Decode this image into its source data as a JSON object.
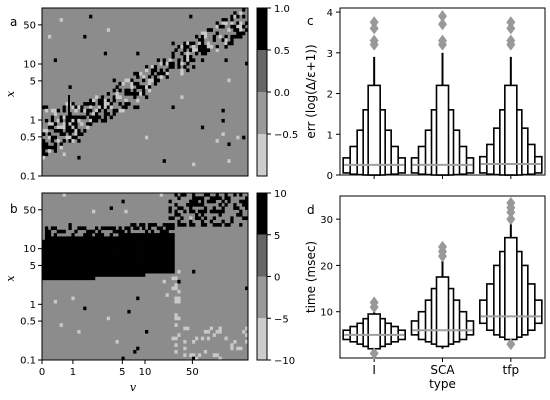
{
  "panels": {
    "a": "a",
    "b": "b",
    "c": "c",
    "d": "d"
  },
  "colors": {
    "background": "#ffffff",
    "heatmap_base": "#8c8c8c",
    "light": "#c8c8c8",
    "dark": "#000000",
    "box_median": "#a0a0a0",
    "outlier": "#999999"
  },
  "chart_data": [
    {
      "id": "a",
      "type": "heatmap",
      "xlabel": "",
      "ylabel": "x",
      "yscale": "log",
      "ylim": [
        0.1,
        100
      ],
      "y_ticks": [
        "0.1",
        "0.5",
        "1",
        "5",
        "10",
        "50"
      ],
      "xlim": [
        0,
        100
      ],
      "x_ticks": [],
      "colorbar": {
        "ticks": [
          "1.0",
          "0.5",
          "0.0",
          "−0.5"
        ],
        "tick_values": [
          1.0,
          0.5,
          0.0,
          -0.5
        ],
        "range": [
          -1.0,
          1.0
        ],
        "levels": [
          {
            "from": 0.5,
            "to": 1.0,
            "color": "#000000"
          },
          {
            "from": 0.0,
            "to": 0.5,
            "color": "#666666"
          },
          {
            "from": -0.5,
            "to": 0.0,
            "color": "#999999"
          },
          {
            "from": -1.0,
            "to": -0.5,
            "color": "#cccccc"
          }
        ]
      },
      "pattern": "sparse black and light cells scattered along the diagonal x ≈ v on a mid-gray background"
    },
    {
      "id": "b",
      "type": "heatmap",
      "xlabel": "v",
      "ylabel": "x",
      "yscale": "log",
      "ylim": [
        0.1,
        100
      ],
      "y_ticks": [
        "0.1",
        "0.5",
        "1",
        "5",
        "10",
        "50"
      ],
      "xscale": "log",
      "x_ticks": [
        "0",
        "1",
        "5",
        "10",
        "50"
      ],
      "colorbar": {
        "ticks": [
          "10",
          "5",
          "0",
          "−5",
          "−10"
        ],
        "tick_values": [
          10,
          5,
          0,
          -5,
          -10
        ],
        "range": [
          -10,
          10
        ],
        "levels": [
          {
            "from": 5,
            "to": 10,
            "color": "#000000"
          },
          {
            "from": 0,
            "to": 5,
            "color": "#666666"
          },
          {
            "from": -5,
            "to": 0,
            "color": "#999999"
          },
          {
            "from": -10,
            "to": -5,
            "color": "#cccccc"
          }
        ]
      },
      "pattern": "solid black band for x between about 2 and 12 at small v, widening up to v ≈ 40; light cells along a vertical line near v ≈ 40 at small x"
    },
    {
      "id": "c",
      "type": "boxen",
      "xlabel": "",
      "ylabel": "err (log(Δ/ε+1))",
      "categories": [
        "I",
        "SCA",
        "tfp"
      ],
      "ylim": [
        0,
        4.1
      ],
      "y_ticks": [
        0,
        1,
        2,
        3,
        4
      ],
      "show_x_ticklabels": false,
      "boxes": [
        {
          "category": "I",
          "median": 0.25,
          "levels": [
            [
              0.05,
              0.42
            ],
            [
              0.02,
              0.7
            ],
            [
              0.01,
              1.1
            ],
            [
              0.0,
              1.6
            ],
            [
              0.0,
              2.2
            ]
          ],
          "whisker_top": 2.9,
          "outliers": [
            3.2,
            3.3,
            3.6,
            3.75
          ]
        },
        {
          "category": "SCA",
          "median": 0.25,
          "levels": [
            [
              0.05,
              0.42
            ],
            [
              0.02,
              0.7
            ],
            [
              0.01,
              1.1
            ],
            [
              0.0,
              1.6
            ],
            [
              0.0,
              2.2
            ]
          ],
          "whisker_top": 3.0,
          "outliers": [
            3.2,
            3.3,
            3.7,
            3.9
          ]
        },
        {
          "category": "tfp",
          "median": 0.27,
          "levels": [
            [
              0.05,
              0.45
            ],
            [
              0.02,
              0.75
            ],
            [
              0.01,
              1.15
            ],
            [
              0.0,
              1.6
            ],
            [
              0.0,
              2.2
            ]
          ],
          "whisker_top": 2.9,
          "outliers": [
            3.2,
            3.3,
            3.6,
            3.75
          ]
        }
      ]
    },
    {
      "id": "d",
      "type": "boxen",
      "xlabel": "type",
      "ylabel": "time (msec)",
      "categories": [
        "I",
        "SCA",
        "tfp"
      ],
      "ylim": [
        0,
        35
      ],
      "y_ticks": [
        10,
        20,
        30
      ],
      "boxes": [
        {
          "category": "I",
          "median": 5.0,
          "levels": [
            [
              4.0,
              6.0
            ],
            [
              3.5,
              6.8
            ],
            [
              3.0,
              7.5
            ],
            [
              2.5,
              8.5
            ],
            [
              2.0,
              9.5
            ]
          ],
          "whisker_top": 10.0,
          "whisker_bottom": 1.5,
          "outliers": [
            1.0,
            11.0,
            12.0
          ]
        },
        {
          "category": "SCA",
          "median": 6.0,
          "levels": [
            [
              5.0,
              8.0
            ],
            [
              4.0,
              10.0
            ],
            [
              3.5,
              12.5
            ],
            [
              3.0,
              15.0
            ],
            [
              2.5,
              17.5
            ]
          ],
          "whisker_top": 21.0,
          "whisker_bottom": 2.0,
          "outliers": [
            22.0,
            23.0,
            24.0
          ]
        },
        {
          "category": "tfp",
          "median": 9.0,
          "levels": [
            [
              7.5,
              12.5
            ],
            [
              6.0,
              16.0
            ],
            [
              5.0,
              20.0
            ],
            [
              4.5,
              23.0
            ],
            [
              4.0,
              26.0
            ]
          ],
          "whisker_top": 29.0,
          "whisker_bottom": 3.5,
          "outliers": [
            3.0,
            30.0,
            31.5,
            32.5,
            33.5
          ]
        }
      ]
    }
  ]
}
